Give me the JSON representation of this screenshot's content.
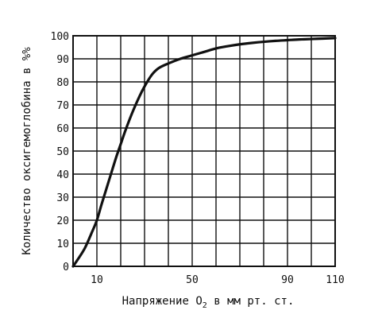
{
  "chart_data": {
    "type": "line",
    "title": "",
    "xlabel_prefix": "Напряжение O",
    "xlabel_subscript": "2",
    "xlabel_suffix": " в мм рт. ст.",
    "ylabel": "Количество оксигемоглобина в %%",
    "xlim": [
      0,
      110
    ],
    "ylim": [
      0,
      100
    ],
    "x_tick_labels": [
      {
        "value": 10,
        "label": "10"
      },
      {
        "value": 50,
        "label": "50"
      },
      {
        "value": 90,
        "label": "90"
      },
      {
        "value": 110,
        "label": "110"
      }
    ],
    "y_tick_labels": [
      {
        "value": 0,
        "label": "0"
      },
      {
        "value": 10,
        "label": "10"
      },
      {
        "value": 20,
        "label": "20"
      },
      {
        "value": 30,
        "label": "30"
      },
      {
        "value": 40,
        "label": "40"
      },
      {
        "value": 50,
        "label": "50"
      },
      {
        "value": 60,
        "label": "60"
      },
      {
        "value": 70,
        "label": "70"
      },
      {
        "value": 80,
        "label": "80"
      },
      {
        "value": 90,
        "label": "90"
      },
      {
        "value": 100,
        "label": "100"
      }
    ],
    "x_grid": [
      0,
      10,
      20,
      30,
      40,
      50,
      60,
      70,
      80,
      90,
      100,
      110
    ],
    "y_grid": [
      0,
      10,
      20,
      30,
      40,
      50,
      60,
      70,
      80,
      90,
      100
    ],
    "grid": true,
    "series": [
      {
        "x": [
          0,
          2,
          5,
          8,
          10,
          12,
          15,
          18,
          20,
          22,
          25,
          28,
          30,
          33,
          36,
          40,
          45,
          50,
          55,
          60,
          65,
          70,
          75,
          80,
          85,
          90,
          95,
          100,
          105,
          110
        ],
        "y": [
          0,
          3,
          8,
          15,
          20,
          27,
          37,
          47,
          53,
          59,
          67,
          74,
          78,
          83,
          86,
          88,
          90,
          91.5,
          93,
          94.5,
          95.5,
          96.3,
          96.9,
          97.4,
          97.8,
          98.1,
          98.4,
          98.6,
          98.8,
          99
        ]
      }
    ]
  }
}
